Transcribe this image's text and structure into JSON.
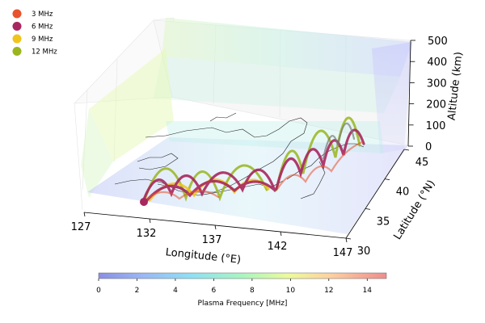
{
  "chart_data": {
    "type": "line",
    "projection": "3d",
    "legend": {
      "placement": "top-left",
      "entries": [
        {
          "label": "3 MHz",
          "color": "#e8522c"
        },
        {
          "label": "6 MHz",
          "color": "#a8275e"
        },
        {
          "label": "9 MHz",
          "color": "#f0c41a"
        },
        {
          "label": "12 MHz",
          "color": "#9ab51e"
        }
      ]
    },
    "xlabel": "Longitude (°E)",
    "ylabel": "Latitude (°N)",
    "zlabel": "Altitude (km)",
    "xticks": [
      "127",
      "132",
      "137",
      "142",
      "147"
    ],
    "yticks": [
      "30",
      "35",
      "40",
      "45"
    ],
    "zticks": [
      "0",
      "100",
      "200",
      "300",
      "400",
      "500"
    ],
    "xlim": [
      127,
      147
    ],
    "ylim": [
      30,
      45
    ],
    "zlim": [
      0,
      500
    ],
    "volume": {
      "quantity": "plasma frequency",
      "colormap": "rainbow",
      "opacity": "translucent"
    },
    "colorbar": {
      "label": "Plasma Frequency [MHz]",
      "ticks": [
        "0",
        "2",
        "4",
        "6",
        "8",
        "10",
        "12",
        "14"
      ],
      "range": [
        0,
        15
      ],
      "colors": [
        "#8a8fe3",
        "#9aa6f0",
        "#9cc2f7",
        "#8ee0f3",
        "#93f0d3",
        "#b7f7ad",
        "#e3fb9c",
        "#fcec98",
        "#fdc9a3",
        "#f8a09a",
        "#ee8d8d"
      ]
    },
    "series": [
      {
        "name": "3 MHz",
        "color": "#e8522c"
      },
      {
        "name": "6 MHz",
        "color": "#a8275e"
      },
      {
        "name": "9 MHz",
        "color": "#f0c41a"
      },
      {
        "name": "12 MHz",
        "color": "#9ab51e"
      }
    ]
  }
}
